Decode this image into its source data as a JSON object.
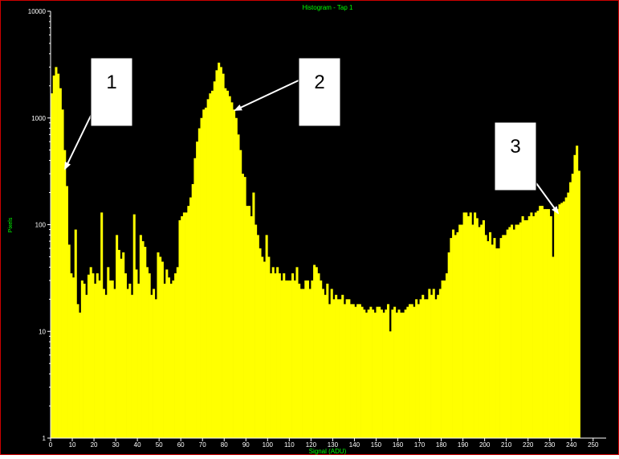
{
  "chart_data": {
    "type": "bar",
    "title": "Histogram - Tap 1",
    "xlabel": "Signal (ADU)",
    "ylabel": "Pixels",
    "y_scale": "log",
    "ylim": [
      1,
      10000
    ],
    "xlim": [
      0,
      256
    ],
    "x_ticks": [
      "0",
      "10",
      "20",
      "30",
      "40",
      "50",
      "60",
      "70",
      "80",
      "90",
      "100",
      "110",
      "120",
      "130",
      "140",
      "150",
      "160",
      "170",
      "180",
      "190",
      "200",
      "210",
      "220",
      "230",
      "240",
      "250"
    ],
    "y_ticks": [
      "1",
      "10",
      "100",
      "1000",
      "10000"
    ],
    "grid": false,
    "colors": {
      "background": "#000000",
      "bars": "#ffff00",
      "text": "#00ff00",
      "frame": "#cc0000"
    },
    "bins_start": 0,
    "bins_step": 1,
    "values": [
      1700,
      2500,
      3000,
      2600,
      1900,
      1200,
      500,
      230,
      65,
      35,
      32,
      90,
      18,
      15,
      30,
      28,
      22,
      34,
      40,
      35,
      28,
      35,
      30,
      130,
      25,
      22,
      40,
      30,
      30,
      25,
      80,
      58,
      48,
      55,
      35,
      25,
      28,
      22,
      125,
      38,
      28,
      80,
      70,
      62,
      40,
      35,
      22,
      25,
      20,
      55,
      50,
      45,
      28,
      38,
      32,
      28,
      30,
      35,
      40,
      110,
      120,
      130,
      130,
      150,
      180,
      240,
      420,
      600,
      800,
      1000,
      1200,
      1250,
      1500,
      1700,
      1800,
      2200,
      2800,
      3300,
      3000,
      2600,
      1900,
      1800,
      1600,
      1400,
      1200,
      1000,
      700,
      500,
      300,
      280,
      150,
      150,
      120,
      200,
      100,
      80,
      60,
      50,
      45,
      80,
      50,
      35,
      40,
      35,
      40,
      35,
      30,
      35,
      30,
      30,
      30,
      35,
      30,
      40,
      28,
      25,
      25,
      30,
      30,
      25,
      30,
      42,
      40,
      35,
      30,
      25,
      22,
      28,
      18,
      25,
      20,
      22,
      20,
      20,
      22,
      18,
      20,
      20,
      18,
      18,
      17,
      18,
      18,
      17,
      16,
      15,
      16,
      17,
      16,
      15,
      17,
      17,
      16,
      15,
      16,
      18,
      10,
      16,
      17,
      15,
      16,
      15,
      15,
      16,
      17,
      18,
      18,
      17,
      20,
      18,
      20,
      22,
      20,
      20,
      25,
      22,
      25,
      20,
      22,
      25,
      30,
      30,
      35,
      55,
      75,
      90,
      80,
      85,
      100,
      100,
      130,
      130,
      120,
      130,
      100,
      130,
      115,
      95,
      100,
      110,
      80,
      70,
      85,
      65,
      75,
      60,
      60,
      75,
      80,
      80,
      90,
      95,
      100,
      90,
      100,
      100,
      105,
      120,
      110,
      110,
      120,
      130,
      120,
      130,
      135,
      150,
      150,
      140,
      140,
      140,
      120,
      50,
      140,
      140,
      155,
      160,
      165,
      180,
      200,
      250,
      300,
      450,
      550,
      320
    ],
    "annotations": [
      {
        "label": "1"
      },
      {
        "label": "2"
      },
      {
        "label": "3"
      }
    ]
  }
}
